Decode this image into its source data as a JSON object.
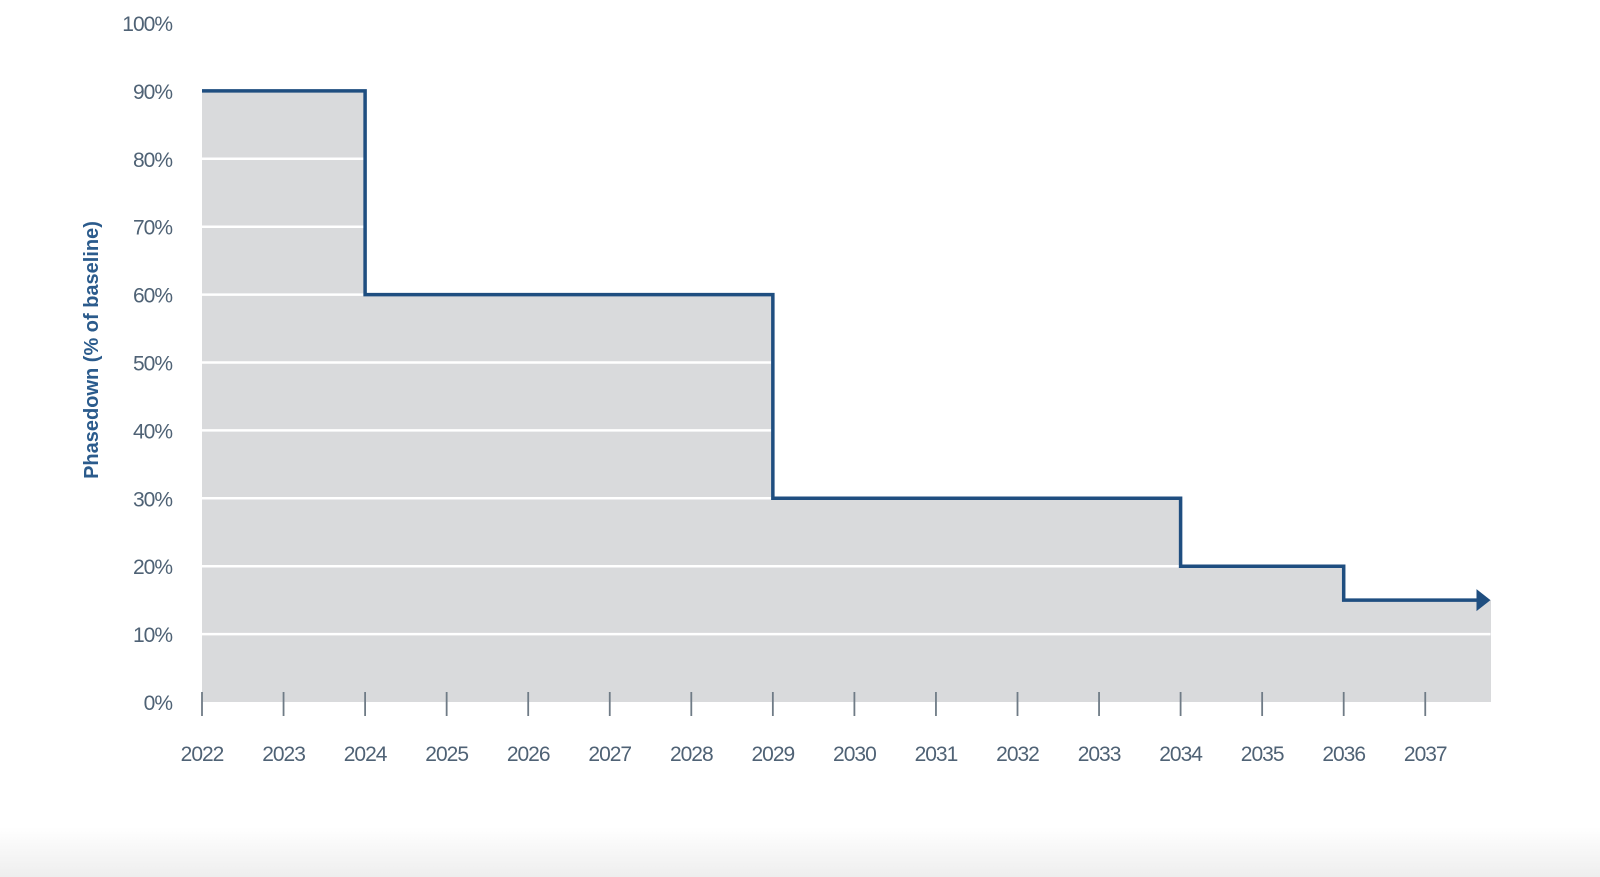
{
  "chart_data": {
    "type": "area",
    "subtype": "step",
    "title": "",
    "xlabel": "",
    "ylabel": "Phasedown (% of baseline)",
    "x_ticks": [
      2022,
      2023,
      2024,
      2025,
      2026,
      2027,
      2028,
      2029,
      2030,
      2031,
      2032,
      2033,
      2034,
      2035,
      2036,
      2037
    ],
    "y_ticks": [
      "0%",
      "10%",
      "20%",
      "30%",
      "40%",
      "50%",
      "60%",
      "70%",
      "80%",
      "90%",
      "100%"
    ],
    "ylim": [
      0,
      100
    ],
    "xlim": [
      2022,
      2037.8
    ],
    "grid": true,
    "steps": [
      {
        "from": 2022,
        "to": 2024,
        "value": 90
      },
      {
        "from": 2024,
        "to": 2029,
        "value": 60
      },
      {
        "from": 2029,
        "to": 2034,
        "value": 30
      },
      {
        "from": 2034,
        "to": 2036,
        "value": 20
      },
      {
        "from": 2036,
        "to": 2037.8,
        "value": 15
      }
    ],
    "continues_arrow": true,
    "colors": {
      "line": "#1f4e80",
      "fill": "#d9dadc",
      "grid": "#ffffff",
      "text": "#4f6275",
      "ylabel": "#2b5b8c"
    }
  }
}
